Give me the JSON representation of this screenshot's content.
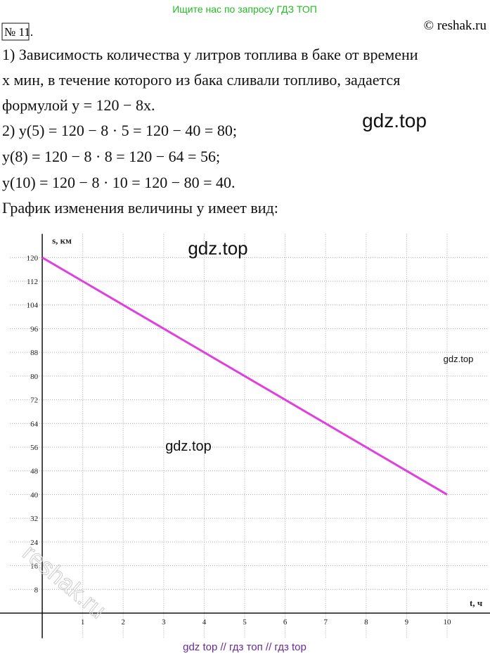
{
  "header": {
    "search_hint": "Ищите нас по запросу ГДЗ ТОП",
    "number": "№ 11.",
    "copyright": "© reshak.ru"
  },
  "lines": [
    "1) Зависимость количества y литров топлива в баке от времени",
    "x мин, в течение которого из бака сливали топливо, задается",
    "формулой y = 120 − 8x.",
    "2) y(5) = 120 − 8 · 5 = 120 − 40 = 80;",
    "y(8) = 120 − 8 · 8 = 120 − 64 = 56;",
    "y(10) = 120 − 8 · 10 = 120 − 80 = 40.",
    "График изменения величины y имеет вид:"
  ],
  "watermarks": [
    "gdz.top",
    "gdz.top",
    "gdz.top",
    "gdz.top"
  ],
  "reshak_watermark": "reshak.ru",
  "chart_data": {
    "type": "line",
    "x": [
      0,
      10
    ],
    "values": [
      120,
      40
    ],
    "color": "#e040e0",
    "xlim": [
      -0.8,
      11
    ],
    "ylim": [
      -8.5,
      128
    ],
    "xticks": [
      1,
      2,
      3,
      4,
      5,
      6,
      7,
      8,
      9,
      10
    ],
    "yticks": [
      8,
      16,
      24,
      32,
      40,
      48,
      56,
      64,
      72,
      80,
      88,
      96,
      104,
      112,
      120
    ],
    "x_label": "t, ч",
    "y_label": "s, км",
    "grid": true
  },
  "footer": "gdz top  //  гдз топ  //  гдз top"
}
